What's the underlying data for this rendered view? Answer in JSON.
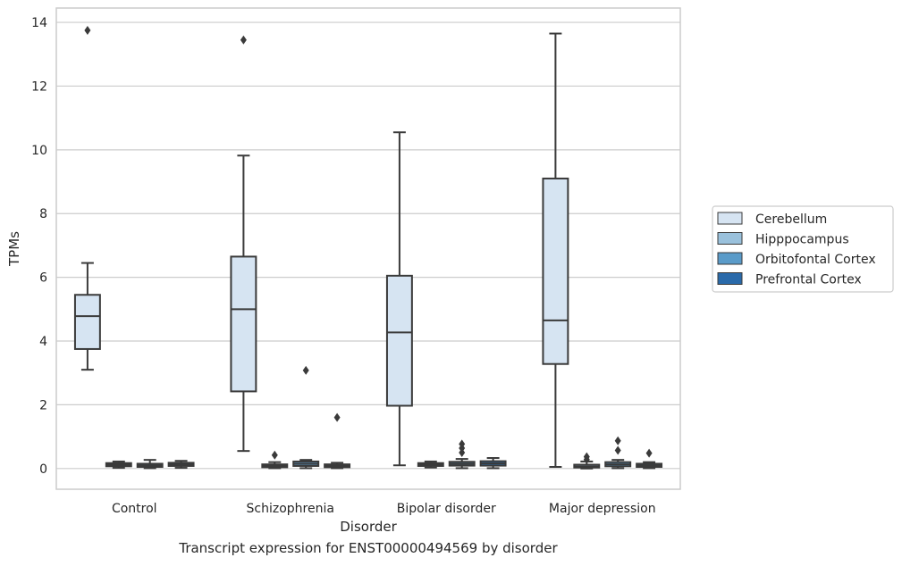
{
  "caption": "Transcript expression for ENST00000494569 by disorder",
  "colors": {
    "grid": "#cccccc",
    "frame": "#cccccc",
    "line": "#3a3a3a"
  },
  "chart_data": {
    "type": "box",
    "title": "",
    "xlabel": "Disorder",
    "ylabel": "TPMs",
    "ylim": [
      -0.65,
      14.45
    ],
    "yticks": [
      0,
      2,
      4,
      6,
      8,
      10,
      12,
      14
    ],
    "grid": true,
    "legend_position": "right",
    "categories": [
      "Control",
      "Schizophrenia",
      "Bipolar disorder",
      "Major depression"
    ],
    "series": [
      {
        "name": "Cerebellum",
        "color": "#d6e4f2",
        "boxes": [
          {
            "whislo": 3.1,
            "q1": 3.75,
            "med": 4.78,
            "q3": 5.45,
            "whishi": 6.45,
            "fliers": [
              13.75
            ]
          },
          {
            "whislo": 0.55,
            "q1": 2.42,
            "med": 5.0,
            "q3": 6.65,
            "whishi": 9.82,
            "fliers": [
              13.45
            ]
          },
          {
            "whislo": 0.1,
            "q1": 1.97,
            "med": 4.27,
            "q3": 6.05,
            "whishi": 10.55,
            "fliers": []
          },
          {
            "whislo": 0.05,
            "q1": 3.28,
            "med": 4.65,
            "q3": 9.1,
            "whishi": 13.65,
            "fliers": []
          }
        ]
      },
      {
        "name": "Hipppocampus",
        "color": "#9ac1dc",
        "boxes": [
          {
            "whislo": 0.02,
            "q1": 0.07,
            "med": 0.12,
            "q3": 0.17,
            "whishi": 0.22,
            "fliers": []
          },
          {
            "whislo": 0.01,
            "q1": 0.04,
            "med": 0.08,
            "q3": 0.13,
            "whishi": 0.2,
            "fliers": [
              0.42
            ]
          },
          {
            "whislo": 0.03,
            "q1": 0.08,
            "med": 0.12,
            "q3": 0.17,
            "whishi": 0.22,
            "fliers": []
          },
          {
            "whislo": 0.0,
            "q1": 0.03,
            "med": 0.06,
            "q3": 0.12,
            "whishi": 0.22,
            "fliers": [
              0.28,
              0.37
            ]
          }
        ]
      },
      {
        "name": "Orbitofontal Cortex",
        "color": "#5a9bc9",
        "boxes": [
          {
            "whislo": 0.01,
            "q1": 0.05,
            "med": 0.1,
            "q3": 0.15,
            "whishi": 0.27,
            "fliers": []
          },
          {
            "whislo": 0.01,
            "q1": 0.08,
            "med": 0.15,
            "q3": 0.22,
            "whishi": 0.27,
            "fliers": [
              3.08
            ]
          },
          {
            "whislo": 0.01,
            "q1": 0.09,
            "med": 0.15,
            "q3": 0.21,
            "whishi": 0.3,
            "fliers": [
              0.5,
              0.64,
              0.77
            ]
          },
          {
            "whislo": 0.01,
            "q1": 0.07,
            "med": 0.13,
            "q3": 0.2,
            "whishi": 0.27,
            "fliers": [
              0.57,
              0.87
            ]
          }
        ]
      },
      {
        "name": "Prefrontal Cortex",
        "color": "#2a6aaa",
        "boxes": [
          {
            "whislo": 0.02,
            "q1": 0.08,
            "med": 0.13,
            "q3": 0.18,
            "whishi": 0.24,
            "fliers": []
          },
          {
            "whislo": 0.01,
            "q1": 0.04,
            "med": 0.08,
            "q3": 0.13,
            "whishi": 0.18,
            "fliers": [
              1.6
            ]
          },
          {
            "whislo": 0.01,
            "q1": 0.09,
            "med": 0.16,
            "q3": 0.23,
            "whishi": 0.33,
            "fliers": []
          },
          {
            "whislo": 0.01,
            "q1": 0.05,
            "med": 0.1,
            "q3": 0.15,
            "whishi": 0.2,
            "fliers": [
              0.48
            ]
          }
        ]
      }
    ]
  }
}
